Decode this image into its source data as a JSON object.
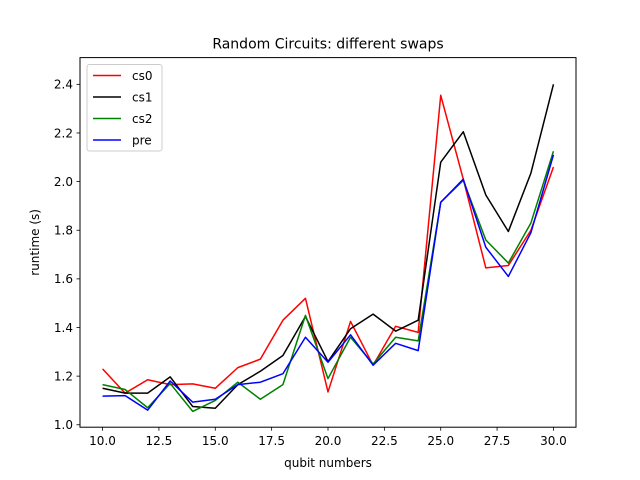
{
  "chart_data": {
    "type": "line",
    "title": "Random Circuits: different swaps",
    "xlabel": "qubit numbers",
    "ylabel": "runtime (s)",
    "xlim": [
      9.0,
      31.0
    ],
    "ylim": [
      0.99,
      2.51
    ],
    "xticks": [
      10.0,
      12.5,
      15.0,
      17.5,
      20.0,
      22.5,
      25.0,
      27.5,
      30.0
    ],
    "xtick_labels": [
      "10.0",
      "12.5",
      "15.0",
      "17.5",
      "20.0",
      "22.5",
      "25.0",
      "27.5",
      "30.0"
    ],
    "yticks": [
      1.0,
      1.2,
      1.4,
      1.6,
      1.8,
      2.0,
      2.2,
      2.4
    ],
    "ytick_labels": [
      "1.0",
      "1.2",
      "1.4",
      "1.6",
      "1.8",
      "2.0",
      "2.2",
      "2.4"
    ],
    "grid": false,
    "legend_position": "top-left",
    "x": [
      10,
      11,
      12,
      13,
      14,
      15,
      16,
      17,
      18,
      19,
      20,
      21,
      22,
      23,
      24,
      25,
      26,
      27,
      28,
      29,
      30
    ],
    "series": [
      {
        "name": "cs0",
        "color": "#ff0000",
        "values": [
          1.23,
          1.13,
          1.185,
          1.165,
          1.168,
          1.15,
          1.235,
          1.27,
          1.43,
          1.52,
          1.135,
          1.425,
          1.245,
          1.405,
          1.38,
          2.355,
          2.01,
          1.645,
          1.655,
          1.8,
          2.06
        ]
      },
      {
        "name": "cs1",
        "color": "#000000",
        "values": [
          1.15,
          1.13,
          1.13,
          1.197,
          1.075,
          1.068,
          1.165,
          1.22,
          1.285,
          1.445,
          1.26,
          1.395,
          1.455,
          1.385,
          1.43,
          2.08,
          2.205,
          1.945,
          1.795,
          2.035,
          2.4
        ]
      },
      {
        "name": "cs2",
        "color": "#008000",
        "values": [
          1.165,
          1.145,
          1.07,
          1.17,
          1.055,
          1.1,
          1.175,
          1.105,
          1.165,
          1.45,
          1.19,
          1.36,
          1.25,
          1.36,
          1.345,
          1.915,
          2.005,
          1.76,
          1.665,
          1.83,
          2.125
        ]
      },
      {
        "name": "pre",
        "color": "#0000ff",
        "values": [
          1.118,
          1.12,
          1.06,
          1.18,
          1.093,
          1.105,
          1.165,
          1.175,
          1.21,
          1.36,
          1.257,
          1.37,
          1.245,
          1.335,
          1.305,
          1.915,
          2.01,
          1.73,
          1.61,
          1.79,
          2.11
        ]
      }
    ]
  }
}
